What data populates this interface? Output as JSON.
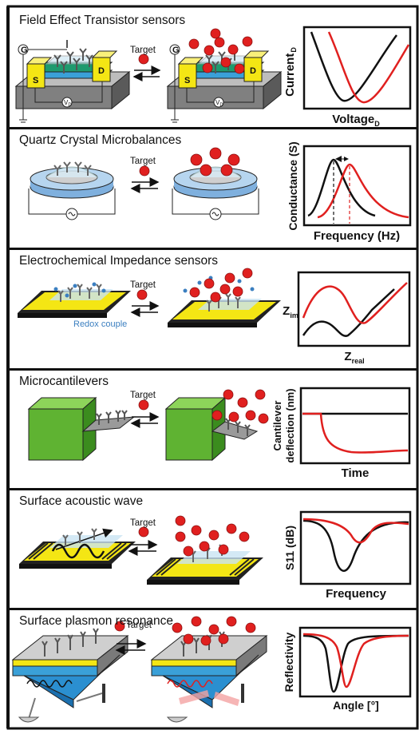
{
  "panels": [
    {
      "title": "Field Effect Transistor sensors",
      "target_label": "Target",
      "device_labels": {
        "gate": "G",
        "source": "S",
        "drain": "D",
        "voltage": "V",
        "voltage_sub": "D"
      },
      "plot": {
        "ylabel": "Current",
        "ylabel_sub": "D",
        "xlabel": "Voltage",
        "xlabel_sub": "D"
      },
      "series_colors": [
        "#111111",
        "#e0201f"
      ]
    },
    {
      "title": "Quartz Crystal Microbalances",
      "target_label": "Target",
      "plot": {
        "ylabel": "Conductance (S)",
        "xlabel": "Frequency (Hz)"
      },
      "series_colors": [
        "#111111",
        "#e0201f"
      ]
    },
    {
      "title": "Electrochemical Impedance sensors",
      "target_label": "Target",
      "redox_label": "Redox couple",
      "plot": {
        "ylabel": "Z",
        "ylabel_sub": "im",
        "xlabel": "Z",
        "xlabel_sub": "real"
      },
      "series_colors": [
        "#111111",
        "#e0201f"
      ]
    },
    {
      "title": "Microcantilevers",
      "target_label": "Target",
      "plot": {
        "ylabel_line1": "Cantilever",
        "ylabel_line2": "deflection (nm)",
        "xlabel": "Time"
      },
      "series_colors": [
        "#111111",
        "#e0201f"
      ]
    },
    {
      "title": "Surface acoustic wave",
      "target_label": "Target",
      "plot": {
        "ylabel": "S11 (dB)",
        "xlabel": "Frequency"
      },
      "series_colors": [
        "#111111",
        "#e0201f"
      ]
    },
    {
      "title": "Surface plasmon resonance",
      "target_label": "Target",
      "plot": {
        "ylabel": "Reflectivity",
        "xlabel": "Angle [°]"
      },
      "series_colors": [
        "#111111",
        "#e0201f"
      ]
    }
  ],
  "colors": {
    "gold": "#f4e614",
    "green": "#1e9a6e",
    "blue": "#3aa0d8",
    "grey": "#8e8e8e",
    "red": "#e0201f",
    "cube_green": "#5fb332"
  }
}
